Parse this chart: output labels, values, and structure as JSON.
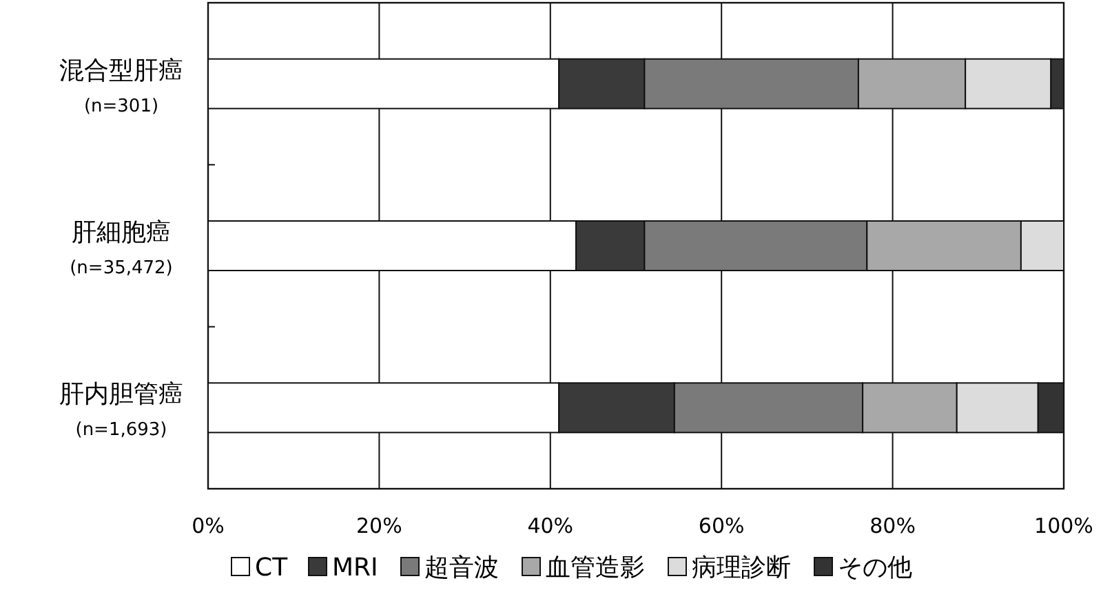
{
  "chart_data": {
    "type": "bar",
    "orientation": "horizontal",
    "stacked": true,
    "categories": [
      "混合型肝癌\n(n=301)",
      "肝細胞癌\n(n=35,472)",
      "肝内胆管癌\n(n=1,693)"
    ],
    "series": [
      {
        "name": "CT",
        "color": "#ffffff",
        "values": [
          41,
          43,
          41
        ]
      },
      {
        "name": "MRI",
        "color": "#3a3a3a",
        "values": [
          10,
          8,
          13.5
        ]
      },
      {
        "name": "超音波",
        "color": "#7a7a7a",
        "values": [
          25,
          26,
          22
        ]
      },
      {
        "name": "血管造影",
        "color": "#a8a8a8",
        "values": [
          12.5,
          18,
          11
        ]
      },
      {
        "name": "病理診断",
        "color": "#dcdcdc",
        "values": [
          10,
          5,
          9.5
        ]
      },
      {
        "name": "その他",
        "color": "#333333",
        "values": [
          1.5,
          0,
          3
        ]
      }
    ],
    "xlim": [
      0,
      100
    ],
    "xticks": [
      {
        "value": 0,
        "label": "0%"
      },
      {
        "value": 20,
        "label": "20%"
      },
      {
        "value": 40,
        "label": "40%"
      },
      {
        "value": 60,
        "label": "60%"
      },
      {
        "value": 80,
        "label": "80%"
      },
      {
        "value": 100,
        "label": "100%"
      }
    ],
    "grid": "x",
    "legend": "bottom"
  }
}
